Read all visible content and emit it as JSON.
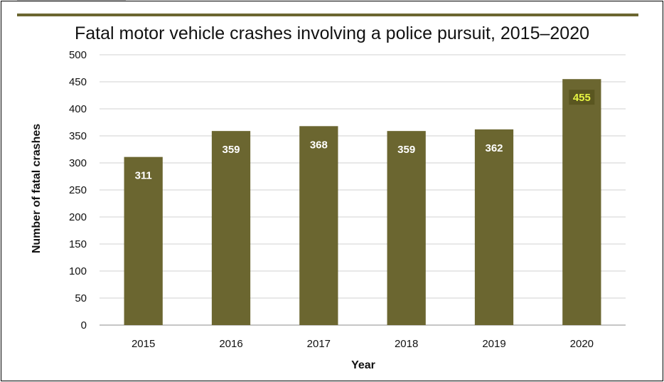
{
  "chart_data": {
    "type": "bar",
    "title": "Fatal motor vehicle crashes involving a police pursuit, 2015–2020",
    "xlabel": "Year",
    "ylabel": "Number of fatal crashes",
    "categories": [
      "2015",
      "2016",
      "2017",
      "2018",
      "2019",
      "2020"
    ],
    "values": [
      311,
      359,
      368,
      359,
      362,
      455
    ],
    "data_labels": [
      "311",
      "359",
      "368",
      "359",
      "362",
      "455"
    ],
    "ylim": [
      0,
      500
    ],
    "yticks": [
      "0",
      "50",
      "100",
      "150",
      "200",
      "250",
      "300",
      "350",
      "400",
      "450",
      "500"
    ],
    "grid": true,
    "legend": "none",
    "bar_color": "#6b6630",
    "highlight_label_color": "#e6f542",
    "highlight_label_background": "#5a5620",
    "highlight_index": 5
  }
}
